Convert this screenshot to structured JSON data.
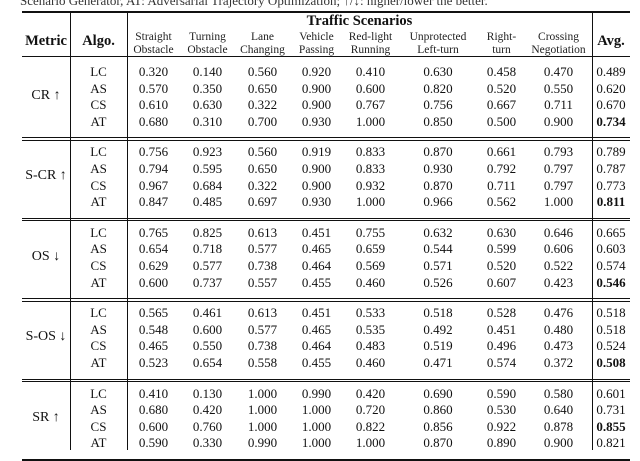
{
  "caption": "Scenario Generator, AT: Adversarial Trajectory Optimization; ↑/↓: higher/lower the better.",
  "header": {
    "metric": "Metric",
    "algo": "Algo.",
    "group": "Traffic Scenarios",
    "avg": "Avg.",
    "scenarios": [
      [
        "Straight",
        "Obstacle"
      ],
      [
        "Turning",
        "Obstacle"
      ],
      [
        "Lane",
        "Changing"
      ],
      [
        "Vehicle",
        "Passing"
      ],
      [
        "Red-light",
        "Running"
      ],
      [
        "Unprotected",
        "Left-turn"
      ],
      [
        "Right-",
        "turn"
      ],
      [
        "Crossing",
        "Negotiation"
      ]
    ]
  },
  "groups": [
    {
      "metric": "CR ↑",
      "rows": [
        {
          "algo": "LC",
          "values": [
            "0.320",
            "0.140",
            "0.560",
            "0.920",
            "0.410",
            "0.630",
            "0.458",
            "0.470"
          ],
          "avg": "0.489",
          "best": false
        },
        {
          "algo": "AS",
          "values": [
            "0.570",
            "0.350",
            "0.650",
            "0.900",
            "0.600",
            "0.820",
            "0.520",
            "0.550"
          ],
          "avg": "0.620",
          "best": false
        },
        {
          "algo": "CS",
          "values": [
            "0.610",
            "0.630",
            "0.322",
            "0.900",
            "0.767",
            "0.756",
            "0.667",
            "0.711"
          ],
          "avg": "0.670",
          "best": false
        },
        {
          "algo": "AT",
          "values": [
            "0.680",
            "0.310",
            "0.700",
            "0.930",
            "1.000",
            "0.850",
            "0.500",
            "0.900"
          ],
          "avg": "0.734",
          "best": true
        }
      ]
    },
    {
      "metric": "S-CR ↑",
      "rows": [
        {
          "algo": "LC",
          "values": [
            "0.756",
            "0.923",
            "0.560",
            "0.919",
            "0.833",
            "0.870",
            "0.661",
            "0.793"
          ],
          "avg": "0.789",
          "best": false
        },
        {
          "algo": "AS",
          "values": [
            "0.794",
            "0.595",
            "0.650",
            "0.900",
            "0.833",
            "0.930",
            "0.792",
            "0.797"
          ],
          "avg": "0.787",
          "best": false
        },
        {
          "algo": "CS",
          "values": [
            "0.967",
            "0.684",
            "0.322",
            "0.900",
            "0.932",
            "0.870",
            "0.711",
            "0.797"
          ],
          "avg": "0.773",
          "best": false
        },
        {
          "algo": "AT",
          "values": [
            "0.847",
            "0.485",
            "0.697",
            "0.930",
            "1.000",
            "0.966",
            "0.562",
            "1.000"
          ],
          "avg": "0.811",
          "best": true
        }
      ]
    },
    {
      "metric": "OS ↓",
      "rows": [
        {
          "algo": "LC",
          "values": [
            "0.765",
            "0.825",
            "0.613",
            "0.451",
            "0.755",
            "0.632",
            "0.630",
            "0.646"
          ],
          "avg": "0.665",
          "best": false
        },
        {
          "algo": "AS",
          "values": [
            "0.654",
            "0.718",
            "0.577",
            "0.465",
            "0.659",
            "0.544",
            "0.599",
            "0.606"
          ],
          "avg": "0.603",
          "best": false
        },
        {
          "algo": "CS",
          "values": [
            "0.629",
            "0.577",
            "0.738",
            "0.464",
            "0.569",
            "0.571",
            "0.520",
            "0.522"
          ],
          "avg": "0.574",
          "best": false
        },
        {
          "algo": "AT",
          "values": [
            "0.600",
            "0.737",
            "0.557",
            "0.455",
            "0.460",
            "0.526",
            "0.607",
            "0.423"
          ],
          "avg": "0.546",
          "best": true
        }
      ]
    },
    {
      "metric": "S-OS ↓",
      "rows": [
        {
          "algo": "LC",
          "values": [
            "0.565",
            "0.461",
            "0.613",
            "0.451",
            "0.533",
            "0.518",
            "0.528",
            "0.476"
          ],
          "avg": "0.518",
          "best": false
        },
        {
          "algo": "AS",
          "values": [
            "0.548",
            "0.600",
            "0.577",
            "0.465",
            "0.535",
            "0.492",
            "0.451",
            "0.480"
          ],
          "avg": "0.518",
          "best": false
        },
        {
          "algo": "CS",
          "values": [
            "0.465",
            "0.550",
            "0.738",
            "0.464",
            "0.483",
            "0.519",
            "0.496",
            "0.473"
          ],
          "avg": "0.524",
          "best": false
        },
        {
          "algo": "AT",
          "values": [
            "0.523",
            "0.654",
            "0.558",
            "0.455",
            "0.460",
            "0.471",
            "0.574",
            "0.372"
          ],
          "avg": "0.508",
          "best": true
        }
      ]
    },
    {
      "metric": "SR ↑",
      "rows": [
        {
          "algo": "LC",
          "values": [
            "0.410",
            "0.130",
            "1.000",
            "0.990",
            "0.420",
            "0.690",
            "0.590",
            "0.580"
          ],
          "avg": "0.601",
          "best": false
        },
        {
          "algo": "AS",
          "values": [
            "0.680",
            "0.420",
            "1.000",
            "1.000",
            "0.720",
            "0.860",
            "0.530",
            "0.640"
          ],
          "avg": "0.731",
          "best": false
        },
        {
          "algo": "CS",
          "values": [
            "0.600",
            "0.760",
            "1.000",
            "1.000",
            "0.822",
            "0.856",
            "0.922",
            "0.878"
          ],
          "avg": "0.855",
          "best": true
        },
        {
          "algo": "AT",
          "values": [
            "0.590",
            "0.330",
            "0.990",
            "1.000",
            "1.000",
            "0.870",
            "0.890",
            "0.900"
          ],
          "avg": "0.821",
          "best": false
        }
      ]
    }
  ]
}
